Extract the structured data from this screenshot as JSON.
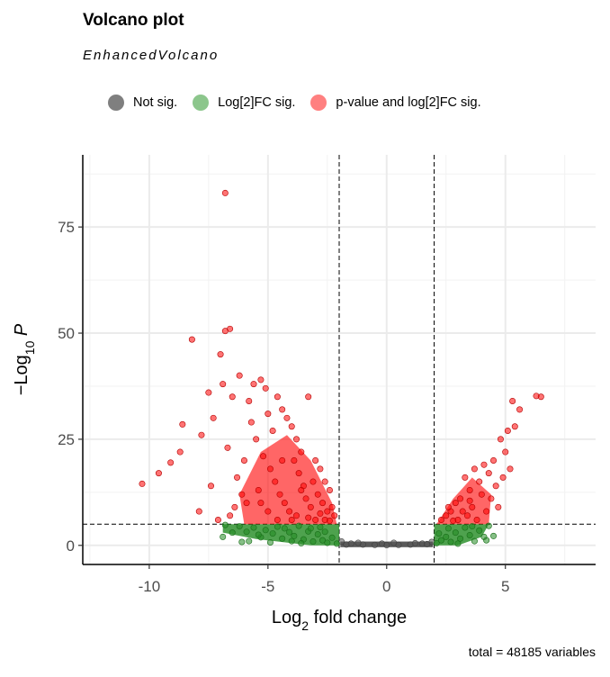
{
  "chart_data": {
    "type": "scatter",
    "title": "Volcano plot",
    "subtitle": "EnhancedVolcano",
    "xlabel": "Log2 fold change",
    "ylabel": "-Log10 P",
    "caption": "total = 48185 variables",
    "xlim": [
      -12.8,
      8.8
    ],
    "ylim": [
      -4.5,
      92
    ],
    "x_ticks": [
      -10,
      -5,
      0,
      5
    ],
    "y_ticks": [
      0,
      25,
      50,
      75
    ],
    "grid": true,
    "legend_position": "top",
    "thresholds": {
      "fc_cutoff": [
        -2,
        2
      ],
      "p_cutoff": 5
    },
    "legend": [
      {
        "label": "Not sig.",
        "color": "#7f7f7f"
      },
      {
        "label": "Log[2]FC sig.",
        "color": "#228b22"
      },
      {
        "label": "p-value and log[2]FC sig.",
        "color": "#ff0000"
      }
    ],
    "series": [
      {
        "name": "Not sig.",
        "color": "#595959",
        "points": [
          [
            -1.9,
            0.9
          ],
          [
            -1.5,
            0.4
          ],
          [
            -1.0,
            0.2
          ],
          [
            -0.5,
            0.1
          ],
          [
            0,
            0.05
          ],
          [
            0.5,
            0.1
          ],
          [
            1.0,
            0.2
          ],
          [
            1.5,
            0.4
          ],
          [
            1.9,
            0.8
          ],
          [
            -1.7,
            0.2
          ],
          [
            1.7,
            0.3
          ],
          [
            -0.2,
            0.4
          ],
          [
            0.3,
            0.6
          ],
          [
            -1.2,
            0.6
          ],
          [
            1.2,
            0.5
          ]
        ]
      },
      {
        "name": "Log[2]FC sig.",
        "color": "#228b22",
        "points": [
          [
            -6.8,
            4.8
          ],
          [
            -6.5,
            3.0
          ],
          [
            -6.9,
            2.0
          ],
          [
            -6.2,
            4.5
          ],
          [
            -5.9,
            3.2
          ],
          [
            -5.6,
            4.2
          ],
          [
            -5.3,
            1.9
          ],
          [
            -5.1,
            3.6
          ],
          [
            -4.8,
            2.8
          ],
          [
            -4.6,
            4.4
          ],
          [
            -4.4,
            1.6
          ],
          [
            -4.1,
            3.1
          ],
          [
            -3.9,
            2.2
          ],
          [
            -3.7,
            4.6
          ],
          [
            -3.5,
            1.4
          ],
          [
            -3.3,
            3.3
          ],
          [
            -3.1,
            0.9
          ],
          [
            -2.9,
            2.6
          ],
          [
            -2.7,
            1.2
          ],
          [
            -2.5,
            0.6
          ],
          [
            -2.3,
            1.8
          ],
          [
            -2.1,
            0.4
          ],
          [
            -5.8,
            1.0
          ],
          [
            -4.9,
            0.7
          ],
          [
            -4.0,
            1.0
          ],
          [
            -3.2,
            4.0
          ],
          [
            -2.8,
            4.3
          ],
          [
            -6.1,
            0.8
          ],
          [
            -5.4,
            2.5
          ],
          [
            -4.3,
            4.0
          ],
          [
            -3.6,
            0.5
          ],
          [
            -2.6,
            3.2
          ],
          [
            2.1,
            0.5
          ],
          [
            2.3,
            1.2
          ],
          [
            2.5,
            2.0
          ],
          [
            2.7,
            0.8
          ],
          [
            2.9,
            3.0
          ],
          [
            3.1,
            1.6
          ],
          [
            3.3,
            4.2
          ],
          [
            3.5,
            2.4
          ],
          [
            3.7,
            1.0
          ],
          [
            3.9,
            3.5
          ],
          [
            4.1,
            2.0
          ],
          [
            4.3,
            4.6
          ],
          [
            4.2,
            1.2
          ],
          [
            4.5,
            2.2
          ],
          [
            2.6,
            4.0
          ],
          [
            3.0,
            0.4
          ],
          [
            3.6,
            4.5
          ],
          [
            2.2,
            2.8
          ]
        ]
      },
      {
        "name": "p-value and log[2]FC sig.",
        "color": "#ff0000",
        "points": [
          [
            -6.8,
            83
          ],
          [
            -6.6,
            51
          ],
          [
            -6.8,
            50.5
          ],
          [
            -8.2,
            48.5
          ],
          [
            -7.0,
            45
          ],
          [
            -10.3,
            14.5
          ],
          [
            -9.6,
            17
          ],
          [
            -9.1,
            19.5
          ],
          [
            -8.7,
            22
          ],
          [
            -8.6,
            28.5
          ],
          [
            -7.5,
            36
          ],
          [
            -7.8,
            26
          ],
          [
            -7.3,
            30
          ],
          [
            -6.9,
            38
          ],
          [
            -6.5,
            35
          ],
          [
            -6.2,
            40
          ],
          [
            -5.8,
            34
          ],
          [
            -5.6,
            38
          ],
          [
            -5.3,
            39
          ],
          [
            -5.1,
            37
          ],
          [
            -5.0,
            31
          ],
          [
            -4.8,
            27
          ],
          [
            -4.6,
            35
          ],
          [
            -4.4,
            32
          ],
          [
            -4.2,
            30
          ],
          [
            -4.0,
            28
          ],
          [
            -3.8,
            25
          ],
          [
            -3.6,
            22
          ],
          [
            -3.3,
            35
          ],
          [
            -3.0,
            20
          ],
          [
            -2.8,
            18
          ],
          [
            -2.6,
            15
          ],
          [
            -2.4,
            13
          ],
          [
            -2.3,
            9
          ],
          [
            -2.2,
            7
          ],
          [
            -7.9,
            8
          ],
          [
            -7.4,
            14
          ],
          [
            -6.0,
            20
          ],
          [
            -6.7,
            23
          ],
          [
            -5.5,
            25
          ],
          [
            -5.2,
            21
          ],
          [
            -4.9,
            18
          ],
          [
            -4.7,
            15
          ],
          [
            -4.5,
            12
          ],
          [
            -4.3,
            10
          ],
          [
            -4.1,
            8
          ],
          [
            -3.9,
            20
          ],
          [
            -3.7,
            17
          ],
          [
            -3.5,
            14
          ],
          [
            -3.4,
            11
          ],
          [
            -3.2,
            9
          ],
          [
            -3.1,
            15
          ],
          [
            -2.9,
            12
          ],
          [
            -2.7,
            10
          ],
          [
            -2.5,
            8
          ],
          [
            -5.9,
            10
          ],
          [
            -6.3,
            16
          ],
          [
            -5.7,
            29
          ],
          [
            -5.4,
            13
          ],
          [
            -6.4,
            9
          ],
          [
            -7.1,
            6
          ],
          [
            -6.6,
            7
          ],
          [
            -6.1,
            12
          ],
          [
            -4.0,
            6
          ],
          [
            -3.0,
            6
          ],
          [
            -2.6,
            6
          ],
          [
            -5.0,
            8
          ],
          [
            -4.6,
            6
          ],
          [
            -3.8,
            7
          ],
          [
            -3.3,
            6.5
          ],
          [
            -2.4,
            5.8
          ],
          [
            -2.8,
            7.5
          ],
          [
            -5.3,
            10
          ],
          [
            -4.4,
            20
          ],
          [
            -3.6,
            13
          ],
          [
            6.5,
            35
          ],
          [
            6.3,
            35.2
          ],
          [
            5.6,
            32
          ],
          [
            5.3,
            34
          ],
          [
            5.1,
            27
          ],
          [
            5.4,
            28
          ],
          [
            5.0,
            22
          ],
          [
            4.8,
            25
          ],
          [
            4.5,
            20
          ],
          [
            4.3,
            17
          ],
          [
            4.1,
            19
          ],
          [
            3.9,
            15
          ],
          [
            3.7,
            18
          ],
          [
            3.5,
            13
          ],
          [
            3.3,
            16
          ],
          [
            3.1,
            11
          ],
          [
            2.9,
            10
          ],
          [
            2.7,
            8
          ],
          [
            2.5,
            7
          ],
          [
            2.3,
            6
          ],
          [
            4.6,
            14
          ],
          [
            4.4,
            11
          ],
          [
            4.0,
            12
          ],
          [
            3.6,
            9
          ],
          [
            3.2,
            8
          ],
          [
            4.9,
            16
          ],
          [
            4.7,
            9
          ],
          [
            3.4,
            7
          ],
          [
            3.0,
            6
          ],
          [
            2.8,
            5.8
          ],
          [
            4.2,
            8
          ],
          [
            3.8,
            6
          ],
          [
            5.2,
            18
          ],
          [
            2.6,
            9
          ],
          [
            3.5,
            10.5
          ]
        ]
      }
    ]
  }
}
